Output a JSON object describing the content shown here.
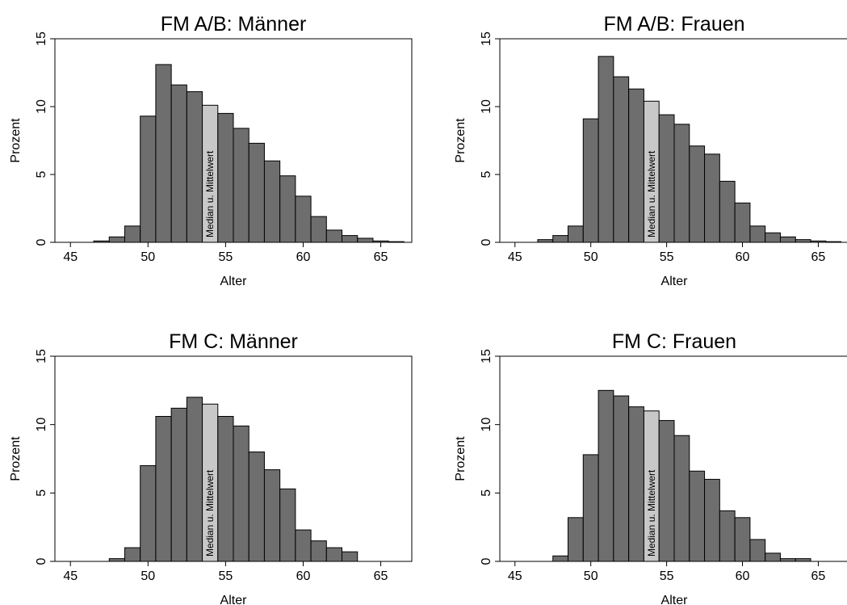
{
  "chart_data": [
    {
      "type": "bar",
      "title": "FM A/B: Männer",
      "xlabel": "Alter",
      "ylabel": "Prozent",
      "xlim": [
        44,
        67
      ],
      "ylim": [
        0,
        15
      ],
      "xticks": [
        "45",
        "50",
        "55",
        "60",
        "65"
      ],
      "yticks": [
        "0",
        "5",
        "10",
        "15"
      ],
      "bins": [
        {
          "from": 46.5,
          "to": 47.5,
          "value": 0.1
        },
        {
          "from": 47.5,
          "to": 48.5,
          "value": 0.4
        },
        {
          "from": 48.5,
          "to": 49.5,
          "value": 1.2
        },
        {
          "from": 49.5,
          "to": 50.5,
          "value": 9.3
        },
        {
          "from": 50.5,
          "to": 51.5,
          "value": 13.1
        },
        {
          "from": 51.5,
          "to": 52.5,
          "value": 11.6
        },
        {
          "from": 52.5,
          "to": 53.5,
          "value": 11.1
        },
        {
          "from": 53.5,
          "to": 54.5,
          "value": 10.1,
          "highlight": true
        },
        {
          "from": 54.5,
          "to": 55.5,
          "value": 9.5
        },
        {
          "from": 55.5,
          "to": 56.5,
          "value": 8.4
        },
        {
          "from": 56.5,
          "to": 57.5,
          "value": 7.3
        },
        {
          "from": 57.5,
          "to": 58.5,
          "value": 6.0
        },
        {
          "from": 58.5,
          "to": 59.5,
          "value": 4.9
        },
        {
          "from": 59.5,
          "to": 60.5,
          "value": 3.4
        },
        {
          "from": 60.5,
          "to": 61.5,
          "value": 1.9
        },
        {
          "from": 61.5,
          "to": 62.5,
          "value": 0.9
        },
        {
          "from": 62.5,
          "to": 63.5,
          "value": 0.5
        },
        {
          "from": 63.5,
          "to": 64.5,
          "value": 0.3
        },
        {
          "from": 64.5,
          "to": 65.5,
          "value": 0.1
        },
        {
          "from": 65.5,
          "to": 66.5,
          "value": 0.05
        }
      ],
      "annotation": "Median u. Mittelwert",
      "bar_color": "#6e6e6e",
      "highlight_color": "#c8c8c8"
    },
    {
      "type": "bar",
      "title": "FM A/B: Frauen",
      "xlabel": "Alter",
      "ylabel": "Prozent",
      "xlim": [
        44,
        67
      ],
      "ylim": [
        0,
        15
      ],
      "xticks": [
        "45",
        "50",
        "55",
        "60",
        "65"
      ],
      "yticks": [
        "0",
        "5",
        "10",
        "15"
      ],
      "bins": [
        {
          "from": 46.5,
          "to": 47.5,
          "value": 0.2
        },
        {
          "from": 47.5,
          "to": 48.5,
          "value": 0.5
        },
        {
          "from": 48.5,
          "to": 49.5,
          "value": 1.2
        },
        {
          "from": 49.5,
          "to": 50.5,
          "value": 9.1
        },
        {
          "from": 50.5,
          "to": 51.5,
          "value": 13.7
        },
        {
          "from": 51.5,
          "to": 52.5,
          "value": 12.2
        },
        {
          "from": 52.5,
          "to": 53.5,
          "value": 11.3
        },
        {
          "from": 53.5,
          "to": 54.5,
          "value": 10.4,
          "highlight": true
        },
        {
          "from": 54.5,
          "to": 55.5,
          "value": 9.4
        },
        {
          "from": 55.5,
          "to": 56.5,
          "value": 8.7
        },
        {
          "from": 56.5,
          "to": 57.5,
          "value": 7.1
        },
        {
          "from": 57.5,
          "to": 58.5,
          "value": 6.5
        },
        {
          "from": 58.5,
          "to": 59.5,
          "value": 4.5
        },
        {
          "from": 59.5,
          "to": 60.5,
          "value": 2.9
        },
        {
          "from": 60.5,
          "to": 61.5,
          "value": 1.2
        },
        {
          "from": 61.5,
          "to": 62.5,
          "value": 0.7
        },
        {
          "from": 62.5,
          "to": 63.5,
          "value": 0.4
        },
        {
          "from": 63.5,
          "to": 64.5,
          "value": 0.2
        },
        {
          "from": 64.5,
          "to": 65.5,
          "value": 0.1
        },
        {
          "from": 65.5,
          "to": 66.5,
          "value": 0.05
        }
      ],
      "annotation": "Median u. Mittelwert",
      "bar_color": "#6e6e6e",
      "highlight_color": "#c8c8c8"
    },
    {
      "type": "bar",
      "title": "FM C: Männer",
      "xlabel": "Alter",
      "ylabel": "Prozent",
      "xlim": [
        44,
        67
      ],
      "ylim": [
        0,
        15
      ],
      "xticks": [
        "45",
        "50",
        "55",
        "60",
        "65"
      ],
      "yticks": [
        "0",
        "5",
        "10",
        "15"
      ],
      "bins": [
        {
          "from": 47.5,
          "to": 48.5,
          "value": 0.2
        },
        {
          "from": 48.5,
          "to": 49.5,
          "value": 1.0
        },
        {
          "from": 49.5,
          "to": 50.5,
          "value": 7.0
        },
        {
          "from": 50.5,
          "to": 51.5,
          "value": 10.6
        },
        {
          "from": 51.5,
          "to": 52.5,
          "value": 11.2
        },
        {
          "from": 52.5,
          "to": 53.5,
          "value": 12.0
        },
        {
          "from": 53.5,
          "to": 54.5,
          "value": 11.5,
          "highlight": true
        },
        {
          "from": 54.5,
          "to": 55.5,
          "value": 10.6
        },
        {
          "from": 55.5,
          "to": 56.5,
          "value": 9.9
        },
        {
          "from": 56.5,
          "to": 57.5,
          "value": 8.0
        },
        {
          "from": 57.5,
          "to": 58.5,
          "value": 6.7
        },
        {
          "from": 58.5,
          "to": 59.5,
          "value": 5.3
        },
        {
          "from": 59.5,
          "to": 60.5,
          "value": 2.3
        },
        {
          "from": 60.5,
          "to": 61.5,
          "value": 1.5
        },
        {
          "from": 61.5,
          "to": 62.5,
          "value": 1.0
        },
        {
          "from": 62.5,
          "to": 63.5,
          "value": 0.7
        }
      ],
      "annotation": "Median u. Mittelwert",
      "bar_color": "#6e6e6e",
      "highlight_color": "#c8c8c8"
    },
    {
      "type": "bar",
      "title": "FM C: Frauen",
      "xlabel": "Alter",
      "ylabel": "Prozent",
      "xlim": [
        44,
        67
      ],
      "ylim": [
        0,
        15
      ],
      "xticks": [
        "45",
        "50",
        "55",
        "60",
        "65"
      ],
      "yticks": [
        "0",
        "5",
        "10",
        "15"
      ],
      "bins": [
        {
          "from": 47.5,
          "to": 48.5,
          "value": 0.4
        },
        {
          "from": 48.5,
          "to": 49.5,
          "value": 3.2
        },
        {
          "from": 49.5,
          "to": 50.5,
          "value": 7.8
        },
        {
          "from": 50.5,
          "to": 51.5,
          "value": 12.5
        },
        {
          "from": 51.5,
          "to": 52.5,
          "value": 12.1
        },
        {
          "from": 52.5,
          "to": 53.5,
          "value": 11.3
        },
        {
          "from": 53.5,
          "to": 54.5,
          "value": 11.0,
          "highlight": true
        },
        {
          "from": 54.5,
          "to": 55.5,
          "value": 10.3
        },
        {
          "from": 55.5,
          "to": 56.5,
          "value": 9.2
        },
        {
          "from": 56.5,
          "to": 57.5,
          "value": 6.6
        },
        {
          "from": 57.5,
          "to": 58.5,
          "value": 6.0
        },
        {
          "from": 58.5,
          "to": 59.5,
          "value": 3.7
        },
        {
          "from": 59.5,
          "to": 60.5,
          "value": 3.2
        },
        {
          "from": 60.5,
          "to": 61.5,
          "value": 1.6
        },
        {
          "from": 61.5,
          "to": 62.5,
          "value": 0.6
        },
        {
          "from": 62.5,
          "to": 63.5,
          "value": 0.2
        },
        {
          "from": 63.5,
          "to": 64.5,
          "value": 0.2
        }
      ],
      "annotation": "Median u. Mittelwert",
      "bar_color": "#6e6e6e",
      "highlight_color": "#c8c8c8"
    }
  ]
}
